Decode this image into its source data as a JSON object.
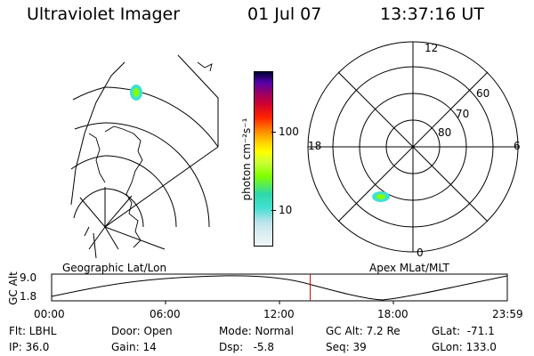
{
  "header": {
    "title": "Ultraviolet Imager",
    "date": "01 Jul 07",
    "time": "13:37:16 UT"
  },
  "colorbar": {
    "unit_label": "photon cm⁻²s⁻¹",
    "tick_100": "100",
    "tick_10": "10",
    "colors": [
      "#e8f4f8",
      "#c8e6ee",
      "#40e0d0",
      "#30d8a8",
      "#80ff00",
      "#ccff33",
      "#ffff00",
      "#ffcc00",
      "#ff8800",
      "#ff2200",
      "#cc0033",
      "#990066",
      "#5500aa",
      "#000033"
    ]
  },
  "geo_map": {
    "label": "Geographic Lat/Lon"
  },
  "polar_plot": {
    "label": "Apex MLat/MLT",
    "mlt_labels": [
      "12",
      "18",
      "6",
      "0"
    ],
    "lat_labels": [
      "60",
      "70",
      "80"
    ]
  },
  "altitude_plot": {
    "ylabel": "GC Alt",
    "yticks": [
      "9.0",
      "1.8"
    ],
    "xticks": [
      "00:00",
      "06:00",
      "12:00",
      "18:00",
      "23:59"
    ],
    "marker_time_hours": 13.62
  },
  "info": {
    "filter": "Flt: LBHL",
    "ip": "IP: 36.0",
    "door": "Door: Open",
    "gain": "Gain: 14",
    "mode": "Mode: Normal",
    "dsp": "Dsp:   -5.8",
    "gc_alt": "GC Alt: 7.2 Re",
    "seq": "Seq: 39",
    "glat": "GLat:  -71.1",
    "glon": "GLon: 133.0"
  }
}
